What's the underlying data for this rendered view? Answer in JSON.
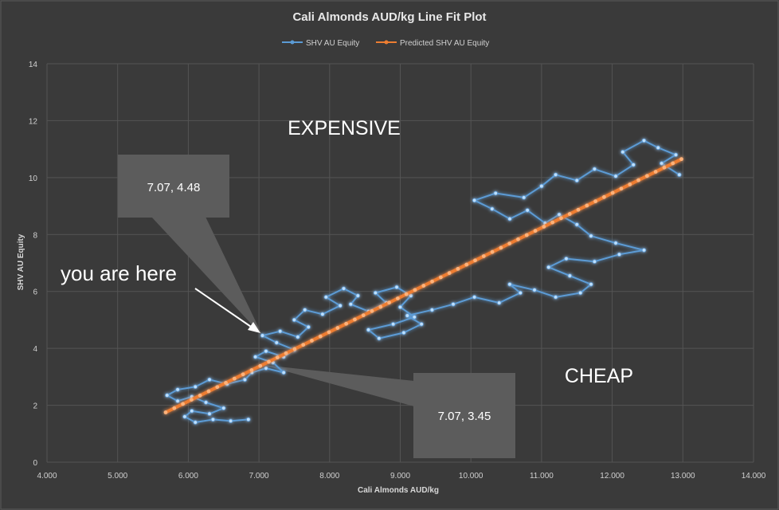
{
  "chart_data": {
    "type": "line",
    "title": "Cali Almonds AUD/kg Line Fit  Plot",
    "xlabel": "Cali Almonds AUD/kg",
    "ylabel": "SHV AU Equity",
    "xlim": [
      4,
      14
    ],
    "ylim": [
      0,
      14
    ],
    "x_ticks": [
      "4.000",
      "5.000",
      "6.000",
      "7.000",
      "8.000",
      "9.000",
      "10.000",
      "11.000",
      "12.000",
      "13.000",
      "14.000"
    ],
    "y_ticks": [
      "0",
      "2",
      "4",
      "6",
      "8",
      "10",
      "12",
      "14"
    ],
    "grid": true,
    "legend_position": "top",
    "series": [
      {
        "name": "SHV AU Equity",
        "color": "#5b9bd5",
        "points": [
          [
            6.85,
            1.5
          ],
          [
            6.6,
            1.45
          ],
          [
            6.35,
            1.5
          ],
          [
            6.1,
            1.4
          ],
          [
            5.95,
            1.6
          ],
          [
            6.05,
            1.8
          ],
          [
            6.3,
            1.7
          ],
          [
            6.5,
            1.9
          ],
          [
            6.25,
            2.1
          ],
          [
            6.05,
            2.3
          ],
          [
            5.85,
            2.15
          ],
          [
            5.7,
            2.35
          ],
          [
            5.85,
            2.55
          ],
          [
            6.1,
            2.65
          ],
          [
            6.3,
            2.9
          ],
          [
            6.55,
            2.75
          ],
          [
            6.8,
            2.9
          ],
          [
            6.9,
            3.15
          ],
          [
            7.1,
            3.3
          ],
          [
            7.35,
            3.15
          ],
          [
            7.2,
            3.5
          ],
          [
            6.95,
            3.7
          ],
          [
            7.1,
            3.9
          ],
          [
            7.35,
            3.7
          ],
          [
            7.5,
            3.95
          ],
          [
            7.25,
            4.2
          ],
          [
            7.05,
            4.45
          ],
          [
            7.3,
            4.6
          ],
          [
            7.55,
            4.4
          ],
          [
            7.7,
            4.75
          ],
          [
            7.5,
            5.0
          ],
          [
            7.65,
            5.35
          ],
          [
            7.9,
            5.2
          ],
          [
            8.15,
            5.5
          ],
          [
            7.95,
            5.8
          ],
          [
            8.2,
            6.1
          ],
          [
            8.4,
            5.85
          ],
          [
            8.3,
            5.55
          ],
          [
            8.55,
            5.3
          ],
          [
            8.8,
            5.6
          ],
          [
            8.65,
            5.95
          ],
          [
            8.95,
            6.15
          ],
          [
            9.15,
            5.85
          ],
          [
            9.0,
            5.45
          ],
          [
            9.2,
            5.1
          ],
          [
            8.9,
            4.85
          ],
          [
            8.55,
            4.65
          ],
          [
            8.7,
            4.35
          ],
          [
            9.05,
            4.55
          ],
          [
            9.3,
            4.85
          ],
          [
            9.1,
            5.15
          ],
          [
            9.45,
            5.35
          ],
          [
            9.75,
            5.55
          ],
          [
            10.05,
            5.8
          ],
          [
            10.4,
            5.6
          ],
          [
            10.7,
            5.95
          ],
          [
            10.55,
            6.25
          ],
          [
            10.9,
            6.05
          ],
          [
            11.2,
            5.8
          ],
          [
            11.55,
            5.95
          ],
          [
            11.7,
            6.25
          ],
          [
            11.4,
            6.55
          ],
          [
            11.1,
            6.85
          ],
          [
            11.35,
            7.15
          ],
          [
            11.75,
            7.05
          ],
          [
            12.1,
            7.3
          ],
          [
            12.45,
            7.45
          ],
          [
            12.05,
            7.7
          ],
          [
            11.7,
            7.95
          ],
          [
            11.5,
            8.35
          ],
          [
            11.25,
            8.7
          ],
          [
            11.05,
            8.4
          ],
          [
            10.8,
            8.85
          ],
          [
            10.55,
            8.55
          ],
          [
            10.3,
            8.9
          ],
          [
            10.05,
            9.2
          ],
          [
            10.35,
            9.45
          ],
          [
            10.75,
            9.3
          ],
          [
            11.0,
            9.7
          ],
          [
            11.2,
            10.1
          ],
          [
            11.5,
            9.9
          ],
          [
            11.75,
            10.3
          ],
          [
            12.05,
            10.05
          ],
          [
            12.3,
            10.45
          ],
          [
            12.15,
            10.9
          ],
          [
            12.45,
            11.3
          ],
          [
            12.65,
            11.05
          ],
          [
            12.9,
            10.8
          ],
          [
            12.7,
            10.5
          ],
          [
            12.95,
            10.1
          ]
        ]
      },
      {
        "name": "Predicted SHV AU Equity",
        "color": "#ed7d31",
        "points": [
          [
            5.68,
            1.75
          ],
          [
            12.98,
            10.65
          ]
        ]
      }
    ],
    "annotations": [
      {
        "text": "EXPENSIVE"
      },
      {
        "text": "CHEAP"
      },
      {
        "text": "you are here"
      },
      {
        "text": "7.07, 4.48",
        "x": 7.07,
        "y": 4.48
      },
      {
        "text": "7.07, 3.45",
        "x": 7.07,
        "y": 3.45
      }
    ]
  }
}
